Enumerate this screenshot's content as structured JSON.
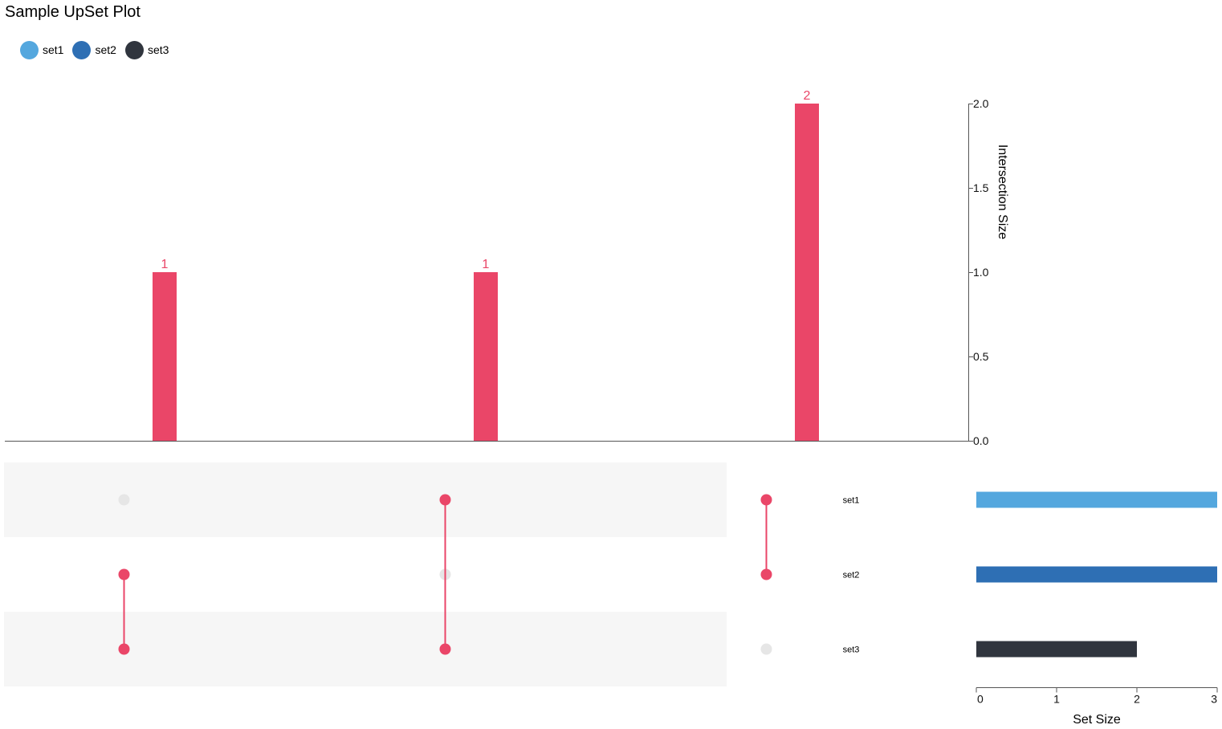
{
  "title": "Sample UpSet Plot",
  "legend": [
    {
      "label": "set1",
      "color": "#54a7de"
    },
    {
      "label": "set2",
      "color": "#2e6fb4"
    },
    {
      "label": "set3",
      "color": "#30353e"
    }
  ],
  "colors": {
    "intersection": "#ea4668",
    "inactive_dot": "#e6e6e6",
    "row_shade": "#f6f6f6",
    "axis": "#555555"
  },
  "chart_data": {
    "type": "bar",
    "sets": [
      {
        "name": "set1",
        "size": 3,
        "color": "#54a7de"
      },
      {
        "name": "set2",
        "size": 3,
        "color": "#2e6fb4"
      },
      {
        "name": "set3",
        "size": 2,
        "color": "#30353e"
      }
    ],
    "intersections": [
      {
        "sets": [
          "set2",
          "set3"
        ],
        "size": 1,
        "label": "1"
      },
      {
        "sets": [
          "set1",
          "set3"
        ],
        "size": 1,
        "label": "1"
      },
      {
        "sets": [
          "set1",
          "set2"
        ],
        "size": 2,
        "label": "2"
      }
    ],
    "intersection_axis": {
      "label": "Intersection Size",
      "ylim": [
        0,
        2
      ],
      "ticks": [
        "0.0",
        "0.5",
        "1.0",
        "1.5",
        "2.0"
      ]
    },
    "set_size_axis": {
      "label": "Set Size",
      "xlim": [
        0,
        3
      ],
      "ticks": [
        "0",
        "1",
        "2",
        "3"
      ]
    }
  }
}
